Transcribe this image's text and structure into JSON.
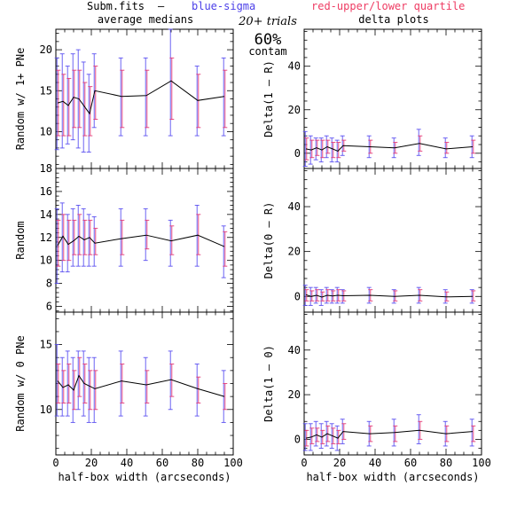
{
  "header": {
    "file_label": "Subm.fits",
    "dash": "–",
    "blue_label": "blue-sigma",
    "red_label": "red-upper/lower quartile",
    "blue_color": "#4b3fe8",
    "red_color": "#ee3c63",
    "left_title": "average medians",
    "right_title": "delta plots",
    "trials": "20+ trials",
    "pct": "60%",
    "contam": "contam"
  },
  "colors": {
    "line": "#000000",
    "sigma": "#5b50f0",
    "quartile": "#e23a78"
  },
  "chart_data": [
    {
      "id": "left-top",
      "type": "line",
      "ylabel": "Random w/ 1+ PNe",
      "xlim": [
        0,
        100
      ],
      "ylim": [
        5.5,
        22.5
      ],
      "yticks": [
        10,
        15,
        20
      ],
      "xticks": [
        0,
        20,
        40,
        60,
        80,
        100
      ],
      "show_xticklabels": false,
      "grid": false,
      "x": [
        1,
        4,
        7,
        10,
        13,
        16,
        19,
        22,
        37,
        51,
        65,
        80,
        95
      ],
      "y": [
        13.5,
        13.7,
        13.2,
        14.2,
        14.0,
        13.1,
        12.2,
        15.0,
        14.3,
        14.4,
        16.2,
        13.8,
        14.3
      ],
      "sigma": [
        [
          7.8,
          19.0
        ],
        [
          8.0,
          19.5
        ],
        [
          8.5,
          18.0
        ],
        [
          9.0,
          19.5
        ],
        [
          8.0,
          20.0
        ],
        [
          7.5,
          18.5
        ],
        [
          7.5,
          17.0
        ],
        [
          10.5,
          19.5
        ],
        [
          9.5,
          19.0
        ],
        [
          9.5,
          19.0
        ],
        [
          9.5,
          22.5
        ],
        [
          9.5,
          18.0
        ],
        [
          9.5,
          19.0
        ]
      ],
      "quartile": [
        [
          9.5,
          17.5
        ],
        [
          9.5,
          17.0
        ],
        [
          9.5,
          16.5
        ],
        [
          10.5,
          17.5
        ],
        [
          10.5,
          17.5
        ],
        [
          9.5,
          16.0
        ],
        [
          9.5,
          15.5
        ],
        [
          11.5,
          18.0
        ],
        [
          10.5,
          17.5
        ],
        [
          10.5,
          17.5
        ],
        [
          11.5,
          19.0
        ],
        [
          10.5,
          17.0
        ],
        [
          10.5,
          17.5
        ]
      ]
    },
    {
      "id": "right-top",
      "type": "line",
      "ylabel": "Delta(1 – R)",
      "xlim": [
        0,
        100
      ],
      "ylim": [
        -7,
        57
      ],
      "yticks": [
        0,
        20,
        40
      ],
      "xticks": [
        0,
        20,
        40,
        60,
        80,
        100
      ],
      "show_xticklabels": false,
      "grid": false,
      "x": [
        1,
        4,
        7,
        10,
        13,
        16,
        19,
        22,
        37,
        51,
        65,
        80,
        95
      ],
      "y": [
        2.0,
        1.5,
        2.5,
        1.5,
        3.0,
        2.0,
        1.0,
        3.5,
        3.0,
        2.5,
        4.5,
        2.0,
        3.0
      ],
      "sigma": [
        [
          -6,
          10
        ],
        [
          -5,
          8
        ],
        [
          -3,
          7
        ],
        [
          -4,
          7
        ],
        [
          -2,
          8
        ],
        [
          -4,
          7
        ],
        [
          -4,
          6
        ],
        [
          -1,
          8
        ],
        [
          -2,
          8
        ],
        [
          -2,
          7
        ],
        [
          -1,
          11
        ],
        [
          -2,
          7
        ],
        [
          -2,
          8
        ]
      ],
      "quartile": [
        [
          -3,
          7
        ],
        [
          -2,
          6
        ],
        [
          -1,
          6
        ],
        [
          -2,
          6
        ],
        [
          0,
          6
        ],
        [
          -2,
          5
        ],
        [
          -2,
          5
        ],
        [
          1,
          6
        ],
        [
          0,
          6
        ],
        [
          0,
          5
        ],
        [
          1,
          8
        ],
        [
          0,
          5
        ],
        [
          0,
          6
        ]
      ]
    },
    {
      "id": "left-mid",
      "type": "line",
      "ylabel": "Random",
      "xlim": [
        0,
        100
      ],
      "ylim": [
        5.5,
        18
      ],
      "yticks": [
        6,
        8,
        10,
        12,
        14,
        16,
        18
      ],
      "xticks": [
        0,
        20,
        40,
        60,
        80,
        100
      ],
      "show_xticklabels": false,
      "grid": false,
      "x": [
        1,
        4,
        7,
        10,
        13,
        16,
        19,
        22,
        37,
        51,
        65,
        80,
        95
      ],
      "y": [
        11.3,
        12.1,
        11.4,
        11.7,
        12.1,
        11.8,
        12.0,
        11.5,
        11.9,
        12.2,
        11.7,
        12.2,
        11.2
      ],
      "sigma": [
        [
          8.0,
          14.5
        ],
        [
          9.0,
          15.0
        ],
        [
          9.0,
          14.0
        ],
        [
          9.5,
          14.5
        ],
        [
          9.5,
          14.8
        ],
        [
          9.5,
          14.5
        ],
        [
          9.5,
          14.0
        ],
        [
          9.5,
          13.8
        ],
        [
          9.5,
          14.5
        ],
        [
          10.0,
          14.5
        ],
        [
          9.5,
          13.5
        ],
        [
          9.5,
          14.8
        ],
        [
          8.5,
          13.0
        ]
      ],
      "quartile": [
        [
          9.5,
          13.5
        ],
        [
          10.0,
          14.0
        ],
        [
          10.0,
          13.5
        ],
        [
          10.5,
          13.5
        ],
        [
          10.5,
          14.0
        ],
        [
          10.5,
          13.5
        ],
        [
          10.5,
          13.5
        ],
        [
          10.5,
          12.8
        ],
        [
          10.5,
          13.5
        ],
        [
          11.0,
          13.5
        ],
        [
          10.5,
          13.0
        ],
        [
          10.5,
          14.0
        ],
        [
          9.5,
          12.5
        ]
      ]
    },
    {
      "id": "right-mid",
      "type": "line",
      "ylabel": "Delta(0 – R)",
      "xlim": [
        0,
        100
      ],
      "ylim": [
        -7,
        57
      ],
      "yticks": [
        0,
        20,
        40
      ],
      "xticks": [
        0,
        20,
        40,
        60,
        80,
        100
      ],
      "show_xticklabels": false,
      "grid": false,
      "x": [
        1,
        4,
        7,
        10,
        13,
        16,
        19,
        22,
        37,
        51,
        65,
        80,
        95
      ],
      "y": [
        0.8,
        0.0,
        0.5,
        -0.3,
        0.5,
        0.2,
        0.5,
        0.3,
        0.5,
        0.0,
        0.5,
        -0.2,
        0.0
      ],
      "sigma": [
        [
          -4,
          5
        ],
        [
          -4,
          4
        ],
        [
          -3,
          4
        ],
        [
          -4,
          3
        ],
        [
          -3,
          4
        ],
        [
          -3,
          3
        ],
        [
          -3,
          4
        ],
        [
          -3,
          3
        ],
        [
          -3,
          4
        ],
        [
          -3,
          3
        ],
        [
          -3,
          4
        ],
        [
          -3,
          3
        ],
        [
          -3,
          3
        ]
      ],
      "quartile": [
        [
          -2,
          3
        ],
        [
          -2,
          2.5
        ],
        [
          -2,
          3
        ],
        [
          -2,
          2
        ],
        [
          -2,
          3
        ],
        [
          -2,
          2.5
        ],
        [
          -2,
          3
        ],
        [
          -2,
          2.5
        ],
        [
          -2,
          3
        ],
        [
          -2,
          2.5
        ],
        [
          -2,
          3
        ],
        [
          -2,
          2
        ],
        [
          -2,
          2.5
        ]
      ]
    },
    {
      "id": "left-bot",
      "type": "line",
      "ylabel": "Random w/ 0 PNe",
      "xlim": [
        0,
        100
      ],
      "ylim": [
        6.5,
        17.5
      ],
      "yticks": [
        10,
        15
      ],
      "xticks": [
        0,
        20,
        40,
        60,
        80,
        100
      ],
      "xticklabels": [
        "0",
        "20",
        "40",
        "60",
        "80",
        "100"
      ],
      "show_xticklabels": true,
      "grid": false,
      "xlabel": "half-box width (arcseconds)",
      "x": [
        1,
        4,
        7,
        10,
        13,
        16,
        19,
        22,
        37,
        51,
        65,
        80,
        95
      ],
      "y": [
        12.2,
        11.7,
        11.9,
        11.5,
        12.6,
        12.0,
        11.8,
        11.6,
        12.2,
        11.9,
        12.3,
        11.6,
        11.0
      ],
      "sigma": [
        [
          9.5,
          15.0
        ],
        [
          9.5,
          14.0
        ],
        [
          9.5,
          14.5
        ],
        [
          9.0,
          14.0
        ],
        [
          10.0,
          14.5
        ],
        [
          9.5,
          14.5
        ],
        [
          9.0,
          14.0
        ],
        [
          9.0,
          14.0
        ],
        [
          9.5,
          14.5
        ],
        [
          9.5,
          14.0
        ],
        [
          10.0,
          14.5
        ],
        [
          9.5,
          13.5
        ],
        [
          9.0,
          13.0
        ]
      ],
      "quartile": [
        [
          10.5,
          13.5
        ],
        [
          10.5,
          13.0
        ],
        [
          10.5,
          13.5
        ],
        [
          10.0,
          13.0
        ],
        [
          11.0,
          14.0
        ],
        [
          10.5,
          13.5
        ],
        [
          10.0,
          13.0
        ],
        [
          10.0,
          13.0
        ],
        [
          10.5,
          13.5
        ],
        [
          10.5,
          13.0
        ],
        [
          11.0,
          13.5
        ],
        [
          10.5,
          12.5
        ],
        [
          10.0,
          12.0
        ]
      ]
    },
    {
      "id": "right-bot",
      "type": "line",
      "ylabel": "Delta(1 – 0)",
      "xlim": [
        0,
        100
      ],
      "ylim": [
        -7,
        57
      ],
      "yticks": [
        0,
        20,
        40
      ],
      "xticks": [
        0,
        20,
        40,
        60,
        80,
        100
      ],
      "xticklabels": [
        "0",
        "20",
        "40",
        "60",
        "80",
        "100"
      ],
      "show_xticklabels": true,
      "grid": false,
      "xlabel": "half-box width (arcseconds)",
      "x": [
        1,
        4,
        7,
        10,
        13,
        16,
        19,
        22,
        37,
        51,
        65,
        80,
        95
      ],
      "y": [
        0.5,
        1.0,
        2.0,
        1.0,
        2.5,
        1.5,
        0.5,
        3.5,
        2.5,
        3.0,
        4.0,
        2.5,
        3.5
      ],
      "sigma": [
        [
          -5,
          7
        ],
        [
          -5,
          7
        ],
        [
          -3,
          8
        ],
        [
          -4,
          7
        ],
        [
          -3,
          8
        ],
        [
          -4,
          7
        ],
        [
          -5,
          6
        ],
        [
          -2,
          9
        ],
        [
          -3,
          8
        ],
        [
          -3,
          9
        ],
        [
          -2,
          11
        ],
        [
          -3,
          8
        ],
        [
          -3,
          9
        ]
      ],
      "quartile": [
        [
          -3,
          4
        ],
        [
          -2,
          5
        ],
        [
          -1,
          5
        ],
        [
          -2,
          4
        ],
        [
          -1,
          6
        ],
        [
          -2,
          5
        ],
        [
          -2,
          4
        ],
        [
          0,
          7
        ],
        [
          -1,
          6
        ],
        [
          -1,
          6
        ],
        [
          0,
          8
        ],
        [
          -1,
          6
        ],
        [
          -1,
          6
        ]
      ]
    }
  ]
}
